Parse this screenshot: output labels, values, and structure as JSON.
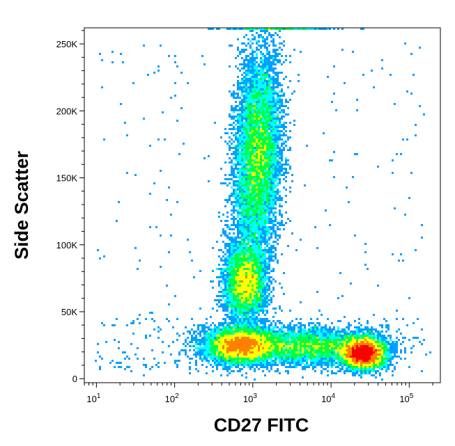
{
  "chart_data": {
    "type": "scatter",
    "style": "flow-cytometry-density-dot-plot",
    "xlabel": "CD27 FITC",
    "ylabel": "Side Scatter",
    "x_scale": "log",
    "x_range": [
      7,
      250000
    ],
    "y_scale": "linear",
    "y_range": [
      -3000,
      262000
    ],
    "x_ticks": [
      {
        "value": 10,
        "base": "10",
        "exp": "1"
      },
      {
        "value": 100,
        "base": "10",
        "exp": "2"
      },
      {
        "value": 1000,
        "base": "10",
        "exp": "3"
      },
      {
        "value": 10000,
        "base": "10",
        "exp": "4"
      },
      {
        "value": 100000,
        "base": "10",
        "exp": "5"
      }
    ],
    "y_ticks": [
      {
        "value": 0,
        "label": "0"
      },
      {
        "value": 50000,
        "label": "50K"
      },
      {
        "value": 100000,
        "label": "100K"
      },
      {
        "value": 150000,
        "label": "150K"
      },
      {
        "value": 200000,
        "label": "200K"
      },
      {
        "value": 250000,
        "label": "250K"
      }
    ],
    "populations": [
      {
        "x_center": 1150,
        "y_center": 165000,
        "x_spread_decades": 0.14,
        "y_spread": 38000,
        "tilt": 6e-06,
        "density": 1.0
      },
      {
        "x_center": 800,
        "y_center": 72000,
        "x_spread_decades": 0.13,
        "y_spread": 14000,
        "tilt": 0,
        "density": 0.55
      },
      {
        "x_center": 700,
        "y_center": 25000,
        "x_spread_decades": 0.22,
        "y_spread": 6500,
        "tilt": 0,
        "density": 0.8
      },
      {
        "x_center": 26000,
        "y_center": 19000,
        "x_spread_decades": 0.13,
        "y_spread": 5500,
        "tilt": 0,
        "density": 0.9
      },
      {
        "x_center": 5000,
        "y_center": 24000,
        "x_spread_decades": 0.45,
        "y_spread": 6500,
        "tilt": 0,
        "density": 0.55
      }
    ],
    "colormap": [
      "#0000ff",
      "#00a0ff",
      "#00ffff",
      "#00ff40",
      "#ffff00",
      "#ff8000",
      "#ff0000"
    ],
    "grid": false,
    "legend": "none"
  }
}
